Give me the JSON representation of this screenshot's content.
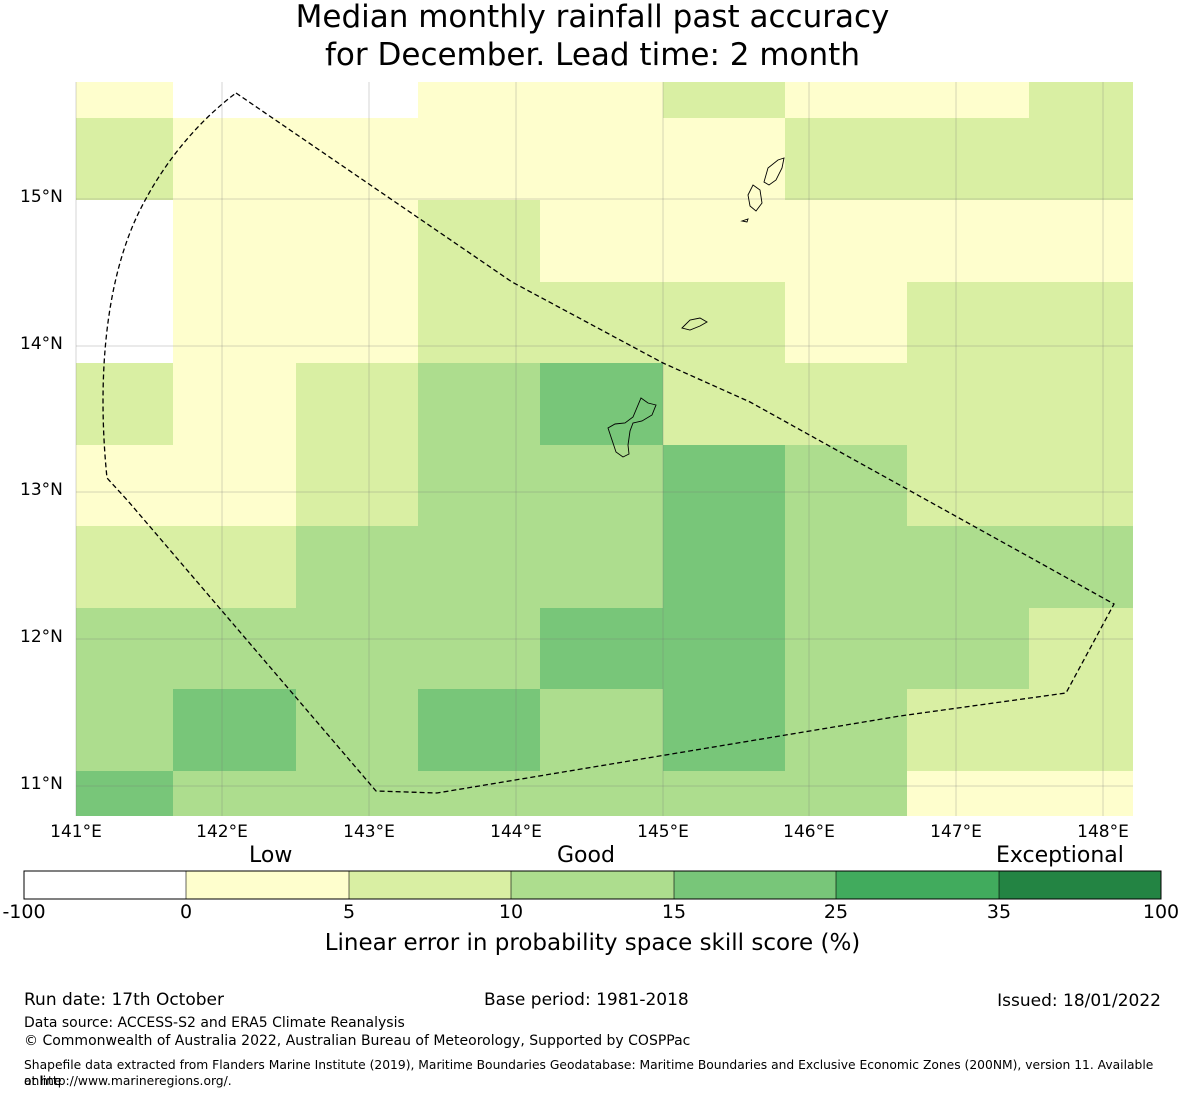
{
  "title": {
    "line1": "Median monthly rainfall past accuracy",
    "line2": "for December. Lead time: 2 month"
  },
  "map": {
    "latitude_labels": [
      "15°N",
      "14°N",
      "13°N",
      "12°N",
      "11°N"
    ],
    "longitude_labels": [
      "141°E",
      "142°E",
      "143°E",
      "144°E",
      "145°E",
      "146°E",
      "147°E",
      "148°E"
    ]
  },
  "colorbar": {
    "title": "Linear error in probability space skill score (%)",
    "categories": [
      "Low",
      "Good",
      "Exceptional"
    ],
    "ticks": [
      "-100",
      "0",
      "5",
      "10",
      "15",
      "25",
      "35",
      "100"
    ],
    "colors": [
      "#ffffff",
      "#fefecd",
      "#d9efa3",
      "#addd8e",
      "#78c679",
      "#41ab5d",
      "#238443"
    ]
  },
  "footer": {
    "run_date": "Run date: 17th October",
    "base_period": "Base period: 1981-2018",
    "issued": "Issued: 18/01/2022",
    "data_source": "Data source: ACCESS-S2 and ERA5 Climate Reanalysis",
    "copyright": "© Commonwealth of Australia 2022, Australian Bureau of Meteorology, Supported by COSPPac",
    "shapefile_line1": "Shapefile data extracted from Flanders Marine Institute (2019), Maritime Boundaries Geodatabase: Maritime Boundaries and Exclusive Economic Zones (200NM), version 11. Available online",
    "shapefile_line2": "at http://www.marineregions.org/."
  }
}
